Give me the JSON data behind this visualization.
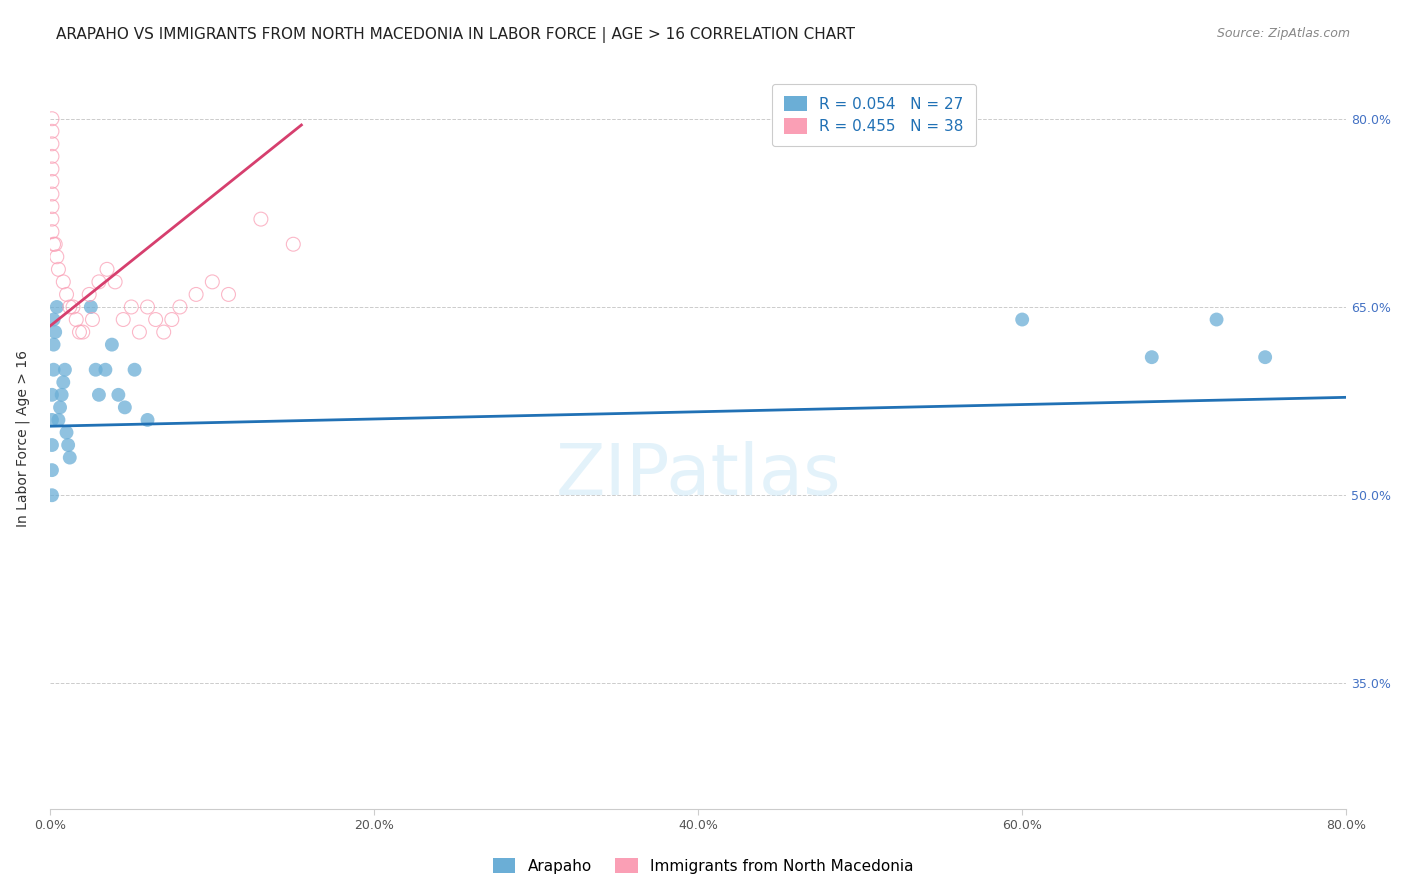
{
  "title": "ARAPAHO VS IMMIGRANTS FROM NORTH MACEDONIA IN LABOR FORCE | AGE > 16 CORRELATION CHART",
  "source": "Source: ZipAtlas.com",
  "ylabel": "In Labor Force | Age > 16",
  "watermark": "ZIPatlas",
  "x_range": [
    0.0,
    0.8
  ],
  "y_range": [
    0.25,
    0.84
  ],
  "blue_color": "#6baed6",
  "pink_color": "#fa9fb5",
  "trend_blue": "#2171b5",
  "trend_pink": "#d63f6e",
  "arapaho_x": [
    0.001,
    0.001,
    0.001,
    0.001,
    0.001,
    0.002,
    0.002,
    0.002,
    0.003,
    0.004,
    0.005,
    0.006,
    0.007,
    0.008,
    0.009,
    0.01,
    0.011,
    0.012,
    0.025,
    0.028,
    0.03,
    0.034,
    0.038,
    0.042,
    0.046,
    0.052,
    0.06,
    0.6,
    0.68,
    0.72,
    0.75
  ],
  "arapaho_y": [
    0.58,
    0.56,
    0.54,
    0.52,
    0.5,
    0.64,
    0.62,
    0.6,
    0.63,
    0.65,
    0.56,
    0.57,
    0.58,
    0.59,
    0.6,
    0.55,
    0.54,
    0.53,
    0.65,
    0.6,
    0.58,
    0.6,
    0.62,
    0.58,
    0.57,
    0.6,
    0.56,
    0.64,
    0.61,
    0.64,
    0.61
  ],
  "macedonia_x": [
    0.001,
    0.001,
    0.001,
    0.001,
    0.001,
    0.001,
    0.001,
    0.001,
    0.001,
    0.001,
    0.002,
    0.003,
    0.004,
    0.005,
    0.008,
    0.01,
    0.012,
    0.014,
    0.016,
    0.018,
    0.02,
    0.024,
    0.026,
    0.03,
    0.035,
    0.04,
    0.045,
    0.05,
    0.055,
    0.06,
    0.065,
    0.07,
    0.075,
    0.08,
    0.09,
    0.1,
    0.11,
    0.13,
    0.15
  ],
  "macedonia_y": [
    0.8,
    0.79,
    0.78,
    0.77,
    0.76,
    0.75,
    0.74,
    0.73,
    0.72,
    0.71,
    0.7,
    0.7,
    0.69,
    0.68,
    0.67,
    0.66,
    0.65,
    0.65,
    0.64,
    0.63,
    0.63,
    0.66,
    0.64,
    0.67,
    0.68,
    0.67,
    0.64,
    0.65,
    0.63,
    0.65,
    0.64,
    0.63,
    0.64,
    0.65,
    0.66,
    0.67,
    0.66,
    0.72,
    0.7
  ],
  "blue_trend_x": [
    0.0,
    0.8
  ],
  "blue_trend_y": [
    0.555,
    0.578
  ],
  "pink_trend_x": [
    0.0,
    0.155
  ],
  "pink_trend_y": [
    0.635,
    0.795
  ],
  "title_fontsize": 11,
  "axis_label_fontsize": 10,
  "tick_fontsize": 9,
  "legend_fontsize": 11,
  "source_fontsize": 9
}
